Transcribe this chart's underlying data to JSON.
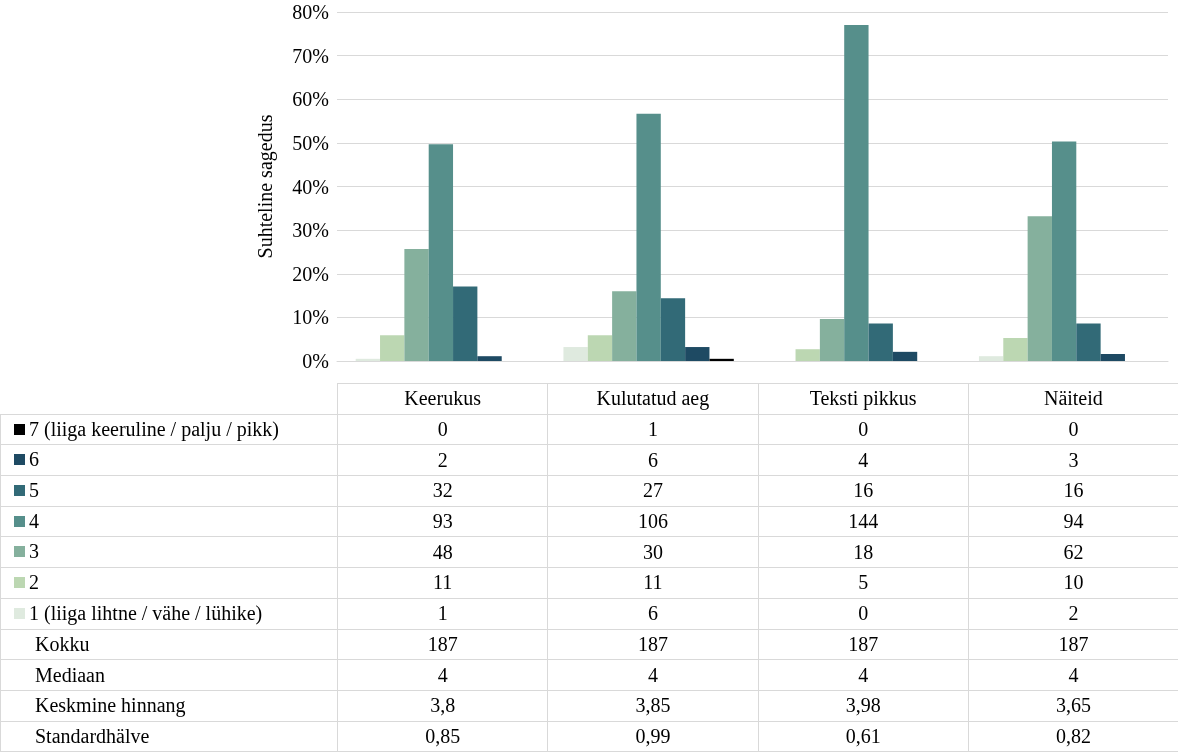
{
  "chart_data": [
    {
      "type": "bar",
      "ylabel": "Suhteline sagedus",
      "categories": [
        null,
        null,
        null,
        null
      ],
      "ylim": [
        0,
        80
      ],
      "yticks": [
        {
          "value": 0,
          "label": "0%"
        },
        {
          "value": 10,
          "label": "10%"
        },
        {
          "value": 20,
          "label": "20%"
        },
        {
          "value": 30,
          "label": "30%"
        },
        {
          "value": 40,
          "label": "40%"
        },
        {
          "value": 50,
          "label": "50%"
        },
        {
          "value": 60,
          "label": "60%"
        },
        {
          "value": 70,
          "label": "70%"
        },
        {
          "value": 80,
          "label": "80%"
        }
      ],
      "grid": "y",
      "tick_labels": "y",
      "legend": "bottom left",
      "series": [
        {
          "name": "1 (liiga lihtne / vähe / lühike)",
          "color": "#dfeadf",
          "values": [
            0.5,
            3.2,
            0,
            1.1
          ]
        },
        {
          "name": "2",
          "color": "#bcd7b2",
          "values": [
            5.9,
            5.9,
            2.7,
            5.3
          ]
        },
        {
          "name": "3",
          "color": "#85b09d",
          "values": [
            25.7,
            16.0,
            9.6,
            33.2
          ]
        },
        {
          "name": "4",
          "color": "#568f8b",
          "values": [
            49.7,
            56.7,
            77.0,
            50.3
          ]
        },
        {
          "name": "5",
          "color": "#326a77",
          "values": [
            17.1,
            14.4,
            8.6,
            8.6
          ]
        },
        {
          "name": "6",
          "color": "#1e4a63",
          "values": [
            1.1,
            3.2,
            2.1,
            1.6
          ]
        },
        {
          "name": "7 (liiga keeruline / palju / pikk)",
          "color": "#000000",
          "values": [
            0,
            0.5,
            0,
            0
          ]
        }
      ]
    },
    {
      "type": "other",
      "data_labels": true,
      "categories": [
        "Keerukus",
        "Kulutatud aeg",
        "Teksti pikkus",
        "Näiteid"
      ],
      "series": [
        {
          "values": [
            0,
            1,
            0,
            0
          ]
        },
        {
          "values": [
            2,
            6,
            4,
            3
          ]
        },
        {
          "values": [
            32,
            27,
            16,
            16
          ]
        },
        {
          "values": [
            93,
            106,
            144,
            94
          ]
        },
        {
          "values": [
            48,
            30,
            18,
            62
          ]
        },
        {
          "values": [
            11,
            11,
            5,
            10
          ]
        },
        {
          "values": [
            1,
            6,
            0,
            2
          ]
        },
        {
          "name": "Kokku",
          "values": [
            187,
            187,
            187,
            187
          ]
        },
        {
          "name": "Mediaan",
          "values": [
            4,
            4,
            4,
            4
          ]
        },
        {
          "name": "Keskmine hinnang",
          "values": [
            3.8,
            3.85,
            3.98,
            3.65
          ],
          "value_labels": [
            "3,8",
            "3,85",
            "3,98",
            "3,65"
          ]
        },
        {
          "name": "Standardhälve",
          "values": [
            0.85,
            0.99,
            0.61,
            0.82
          ],
          "value_labels": [
            "0,85",
            "0,99",
            "0,61",
            "0,82"
          ]
        }
      ]
    }
  ]
}
